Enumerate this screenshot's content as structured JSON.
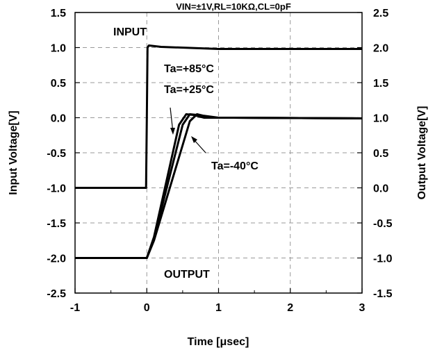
{
  "chart_data": {
    "type": "line",
    "title": "VIN=±1V,RL=10KΩ,CL=0pF",
    "xlabel": "Time [μsec]",
    "ylabel_left": "Input Voltage[V]",
    "ylabel_right": "Output Voltage[V]",
    "xlim": [
      -1,
      3
    ],
    "ylim_left": [
      -2.5,
      1.5
    ],
    "ylim_right": [
      -1.5,
      2.5
    ],
    "x_ticks": [
      "-1",
      "0",
      "1",
      "2",
      "3"
    ],
    "y_left_ticks": [
      "1.5",
      "1.0",
      "0.5",
      "0.0",
      "-0.5",
      "-1.0",
      "-1.5",
      "-2.0",
      "-2.5"
    ],
    "y_right_ticks": [
      "2.5",
      "2.0",
      "1.5",
      "1.0",
      "0.5",
      "0.0",
      "-0.5",
      "-1.0",
      "-1.5"
    ],
    "grid": true,
    "annotations": {
      "input": "INPUT",
      "output": "OUTPUT",
      "t85": "Ta=+85°C",
      "t25": "Ta=+25°C",
      "tm40": "Ta=-40°C"
    },
    "series": [
      {
        "name": "INPUT",
        "axis": "right",
        "x": [
          -1,
          -0.01,
          0,
          0.01,
          0.03,
          0.2,
          1.0,
          3.0
        ],
        "y": [
          0.0,
          0.0,
          1.0,
          2.0,
          2.03,
          2.01,
          1.98,
          1.98
        ]
      },
      {
        "name": "Ta=+85°C",
        "axis": "right",
        "x": [
          -1,
          0.0,
          0.1,
          0.45,
          0.55,
          0.65,
          0.8,
          1.2,
          3.0
        ],
        "y": [
          -1.0,
          -1.0,
          -0.7,
          0.9,
          1.05,
          1.04,
          1.0,
          1.0,
          0.99
        ]
      },
      {
        "name": "Ta=+25°C",
        "axis": "right",
        "x": [
          -1,
          0.0,
          0.1,
          0.5,
          0.6,
          0.7,
          0.9,
          1.2,
          3.0
        ],
        "y": [
          -1.0,
          -1.0,
          -0.72,
          0.9,
          1.05,
          1.04,
          1.0,
          1.0,
          0.99
        ]
      },
      {
        "name": "Ta=-40°C",
        "axis": "right",
        "x": [
          -1,
          0.0,
          0.1,
          0.6,
          0.7,
          0.78,
          1.0,
          1.2,
          3.0
        ],
        "y": [
          -1.0,
          -1.0,
          -0.75,
          0.95,
          1.05,
          1.03,
          1.0,
          1.0,
          0.99
        ]
      }
    ]
  }
}
